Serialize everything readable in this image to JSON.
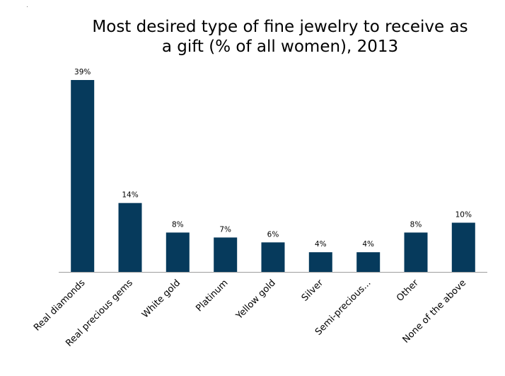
{
  "chart_data": {
    "type": "bar",
    "title": "Most desired type of fine jewelry to receive as a gift (% of all women), 2013",
    "xlabel": "",
    "ylabel": "",
    "categories": [
      "Real diamonds",
      "Real precious gems",
      "White gold",
      "Platinum",
      "Yellow gold",
      "Silver",
      "Semi-precious...",
      "Other",
      "None of the above"
    ],
    "values": [
      39,
      14,
      8,
      7,
      6,
      4,
      4,
      8,
      10
    ],
    "value_labels": [
      "39%",
      "14%",
      "8%",
      "7%",
      "6%",
      "4%",
      "4%",
      "8%",
      "10%"
    ],
    "ylim": [
      0,
      40
    ],
    "grid": false,
    "colors": {
      "bar": "#063a5c",
      "axis": "#9e9e9e",
      "text": "#000000"
    }
  }
}
